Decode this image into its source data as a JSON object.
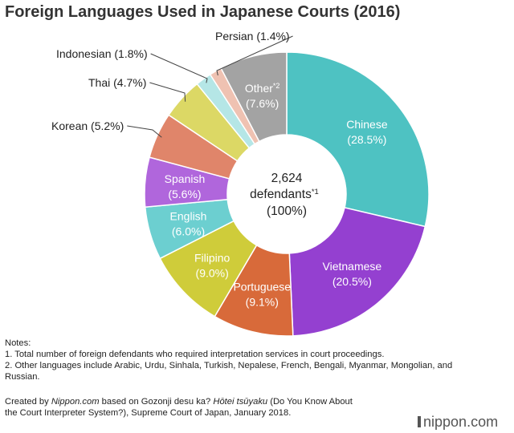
{
  "chart_data": {
    "type": "donut",
    "title": "Foreign Languages Used in Japanese Courts (2016)",
    "center": {
      "line1": "2,624",
      "line2": "defendants",
      "line2_sup": "*1",
      "line3": "(100%)"
    },
    "slices": [
      {
        "label": "Chinese",
        "value": 28.5,
        "display": "(28.5%)",
        "color": "#4ec2c2",
        "inside": true
      },
      {
        "label": "Vietnamese",
        "value": 20.5,
        "display": "(20.5%)",
        "color": "#9440d0",
        "inside": true
      },
      {
        "label": "Portuguese",
        "value": 9.1,
        "display": "(9.1%)",
        "color": "#d86a3a",
        "inside": true
      },
      {
        "label": "Filipino",
        "value": 9.0,
        "display": "(9.0%)",
        "color": "#cfcc3a",
        "inside": true
      },
      {
        "label": "English",
        "value": 6.0,
        "display": "(6.0%)",
        "color": "#6ccfd0",
        "inside": true
      },
      {
        "label": "Spanish",
        "value": 5.6,
        "display": "(5.6%)",
        "color": "#b066dc",
        "inside": true
      },
      {
        "label": "Korean",
        "value": 5.2,
        "display": "Korean (5.2%)",
        "color": "#e0856a",
        "inside": false
      },
      {
        "label": "Thai",
        "value": 4.7,
        "display": "Thai (4.7%)",
        "color": "#dcd865",
        "inside": false
      },
      {
        "label": "Indonesian",
        "value": 1.8,
        "display": "Indonesian (1.8%)",
        "color": "#b5e6e6",
        "inside": false
      },
      {
        "label": "Persian",
        "value": 1.4,
        "display": "Persian (1.4%)",
        "color": "#efc2b2",
        "inside": false
      },
      {
        "label": "Other",
        "value": 7.6,
        "display": "(7.6%)",
        "sup": "*2",
        "color": "#a3a3a3",
        "inside": true
      }
    ]
  },
  "notes": {
    "heading": "Notes:",
    "note1": "1. Total number of foreign defendants who required interpretation services in court proceedings.",
    "note2": "2. Other languages include Arabic, Urdu, Sinhala, Turkish, Nepalese, French, Bengali, Myanmar, Mongolian, and Russian."
  },
  "credit": {
    "prefix": "Created by ",
    "publisher": "Nippon.com",
    "middle": " based on Gozonji desu ka? ",
    "source_title": "Hōtei tsūyaku",
    "suffix": " (Do You Know About the Court Interpreter System?), Supreme Court of Japan, January 2018."
  },
  "brand": {
    "name": "nippon",
    "dot": ".",
    "tld": "com"
  }
}
